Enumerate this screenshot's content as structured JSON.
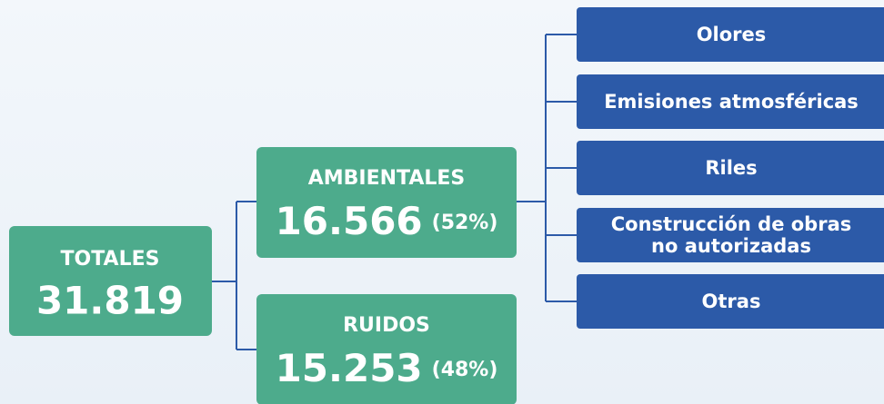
{
  "totals": {
    "label": "TOTALES",
    "value": "31.819"
  },
  "branches": [
    {
      "label": "AMBIENTALES",
      "value": "16.566",
      "share": "(52%)"
    },
    {
      "label": "RUIDOS",
      "value": "15.253",
      "share": "(48%)"
    }
  ],
  "categories": [
    [
      "Olores"
    ],
    [
      "Emisiones atmosféricas"
    ],
    [
      "Riles"
    ],
    [
      "Construcción de obras",
      "no autorizadas"
    ],
    [
      "Otras"
    ]
  ]
}
